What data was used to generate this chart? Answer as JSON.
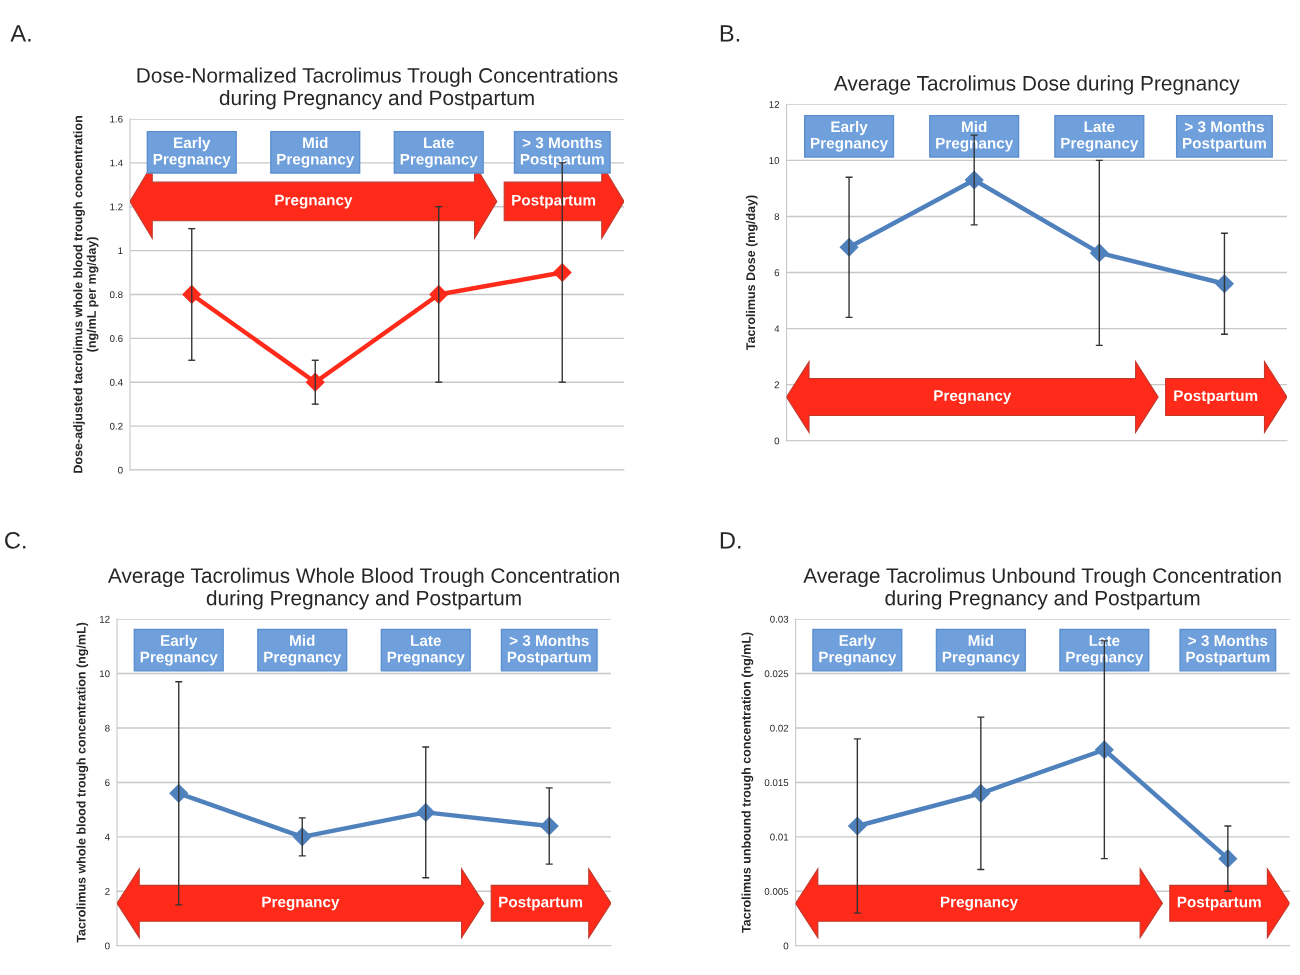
{
  "chart_data": [
    {
      "type": "line",
      "title": "Dose-Normalized Tacrolimus Trough Concentrations\nduring Pregnancy and Postpartum",
      "ylabel": "Dose-adjusted tacrolimus whole blood trough concentration\n(ng/mL per mg/day)",
      "annotations": [
        "A.",
        "Pregnancy",
        "Postpartum"
      ],
      "categories": [
        "Early\nPregnancy",
        "Mid\nPregnancy",
        "Late\nPregnancy",
        "> 3 Months\nPostpartum"
      ],
      "values": [
        0.8,
        0.4,
        0.8,
        0.9
      ],
      "errors": [
        [
          0.5,
          1.1
        ],
        [
          0.3,
          0.5
        ],
        [
          0.4,
          1.2
        ],
        [
          0.4,
          1.4
        ]
      ],
      "color": "#ff2a1a",
      "marker": "diamond",
      "grid": "y",
      "ylim": [
        0,
        1.6
      ],
      "yticks": [
        0,
        0.2,
        0.4,
        0.6,
        0.8,
        1,
        1.2,
        1.4,
        1.6
      ]
    },
    {
      "type": "line",
      "title": "Average Tacrolimus Dose during Pregnancy",
      "ylabel": "Tacrolimus Dose (mg/day)",
      "annotations": [
        "B.",
        "Pregnancy",
        "Postpartum"
      ],
      "categories": [
        "Early\nPregnancy",
        "Mid\nPregnancy",
        "Late\nPregnancy",
        "> 3 Months\nPostpartum"
      ],
      "values": [
        6.9,
        9.3,
        6.7,
        5.6
      ],
      "errors": [
        [
          4.4,
          9.4
        ],
        [
          7.7,
          10.9
        ],
        [
          3.4,
          10
        ],
        [
          3.8,
          7.4
        ]
      ],
      "color": "#4f81bd",
      "marker": "diamond",
      "grid": "y",
      "ylim": [
        0,
        12
      ],
      "yticks": [
        0,
        2,
        4,
        6,
        8,
        10,
        12
      ]
    },
    {
      "type": "line",
      "title": "Average Tacrolimus Whole Blood Trough Concentration\nduring Pregnancy and Postpartum",
      "ylabel": "Tacrolimus whole blood trough concentration (ng/mL)",
      "annotations": [
        "C.",
        "Pregnancy",
        "Postpartum"
      ],
      "categories": [
        "Early\nPregnancy",
        "Mid\nPregnancy",
        "Late\nPregnancy",
        "> 3 Months\nPostpartum"
      ],
      "values": [
        5.6,
        4.0,
        4.9,
        4.4
      ],
      "errors": [
        [
          1.5,
          9.7
        ],
        [
          3.3,
          4.7
        ],
        [
          2.5,
          7.3
        ],
        [
          3.0,
          5.8
        ]
      ],
      "color": "#4f81bd",
      "marker": "diamond",
      "grid": "y",
      "ylim": [
        0,
        12
      ],
      "yticks": [
        0,
        2,
        4,
        6,
        8,
        10,
        12
      ]
    },
    {
      "type": "line",
      "title": "Average Tacrolimus Unbound Trough Concentration\nduring Pregnancy and Postpartum",
      "ylabel": "Tacrolimus unbound trough concentration (ng/mL)",
      "annotations": [
        "D.",
        "Pregnancy",
        "Postpartum"
      ],
      "categories": [
        "Early\nPregnancy",
        "Mid\nPregnancy",
        "Late\nPregnancy",
        "> 3 Months\nPostpartum"
      ],
      "values": [
        0.011,
        0.014,
        0.018,
        0.008
      ],
      "errors": [
        [
          0.003,
          0.019
        ],
        [
          0.007,
          0.021
        ],
        [
          0.008,
          0.028
        ],
        [
          0.005,
          0.011
        ]
      ],
      "color": "#4f81bd",
      "marker": "diamond",
      "grid": "y",
      "ylim": [
        0,
        0.03
      ],
      "yticks": [
        0,
        0.005,
        0.01,
        0.015,
        0.02,
        0.025,
        0.03
      ]
    }
  ]
}
